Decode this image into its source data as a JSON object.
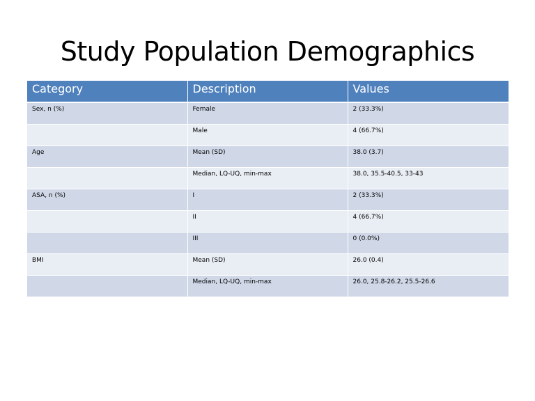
{
  "slide": {
    "title": "Study Population Demographics"
  },
  "table": {
    "headers": [
      "Category",
      "Description",
      "Values"
    ],
    "header_color": "#4f81bd",
    "row_colors": [
      "#d0d8e8",
      "#e9edf4"
    ],
    "rows": [
      [
        "Sex, n (%)",
        "Female",
        "2 (33.3%)"
      ],
      [
        "",
        "Male",
        "4 (66.7%)"
      ],
      [
        "Age",
        "Mean (SD)",
        "38.0 (3.7)"
      ],
      [
        "",
        "Median, LQ-UQ, min-max",
        "38.0, 35.5-40.5, 33-43"
      ],
      [
        "ASA, n (%)",
        "I",
        "2 (33.3%)"
      ],
      [
        "",
        "II",
        "4 (66.7%)"
      ],
      [
        "",
        "III",
        "0 (0.0%)"
      ],
      [
        "BMI",
        "Mean (SD)",
        "26.0 (0.4)"
      ],
      [
        "",
        "Median, LQ-UQ, min-max",
        "26.0, 25.8-26.2, 25.5-26.6"
      ]
    ]
  }
}
